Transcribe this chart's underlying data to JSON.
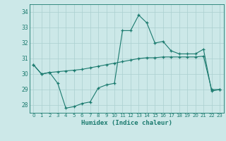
{
  "xlabel": "Humidex (Indice chaleur)",
  "x": [
    0,
    1,
    2,
    3,
    4,
    5,
    6,
    7,
    8,
    9,
    10,
    11,
    12,
    13,
    14,
    15,
    16,
    17,
    18,
    19,
    20,
    21,
    22,
    23
  ],
  "line1": [
    30.6,
    30.0,
    30.1,
    29.4,
    27.8,
    27.9,
    28.1,
    28.2,
    29.1,
    29.3,
    29.4,
    32.8,
    32.8,
    33.8,
    33.3,
    32.0,
    32.1,
    31.5,
    31.3,
    31.3,
    31.3,
    31.6,
    28.9,
    29.0
  ],
  "line2": [
    30.6,
    30.0,
    30.1,
    30.15,
    30.2,
    30.25,
    30.3,
    30.4,
    30.5,
    30.6,
    30.7,
    30.8,
    30.9,
    31.0,
    31.05,
    31.05,
    31.1,
    31.1,
    31.1,
    31.1,
    31.1,
    31.15,
    29.0,
    29.0
  ],
  "ylim": [
    27.5,
    34.5
  ],
  "xlim": [
    -0.5,
    23.5
  ],
  "yticks": [
    28,
    29,
    30,
    31,
    32,
    33,
    34
  ],
  "xticks": [
    0,
    1,
    2,
    3,
    4,
    5,
    6,
    7,
    8,
    9,
    10,
    11,
    12,
    13,
    14,
    15,
    16,
    17,
    18,
    19,
    20,
    21,
    22,
    23
  ],
  "line_color": "#1a7a6e",
  "bg_color": "#cce8e8",
  "grid_color": "#aacfcf",
  "spine_color": "#1a7a6e"
}
